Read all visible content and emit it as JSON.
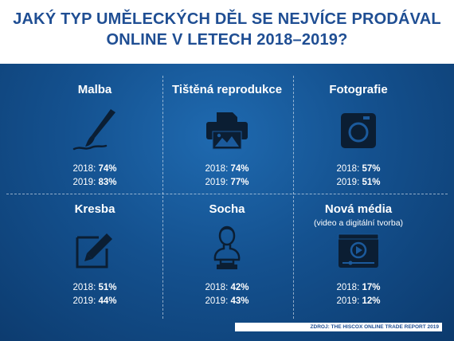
{
  "title": {
    "line1": "JAKÝ TYP UMĚLECKÝCH DĚL SE NEJVÍCE PRODÁVAL",
    "line2": "ONLINE V LETECH 2018–2019?"
  },
  "categories": [
    {
      "name": "Malba",
      "icon": "paintbrush-icon",
      "y2018_label": "2018:",
      "y2018_value": "74%",
      "y2019_label": "2019:",
      "y2019_value": "83%"
    },
    {
      "name": "Tištěná reprodukce",
      "icon": "printer-icon",
      "y2018_label": "2018:",
      "y2018_value": "74%",
      "y2019_label": "2019:",
      "y2019_value": "77%"
    },
    {
      "name": "Fotografie",
      "icon": "camera-icon",
      "y2018_label": "2018:",
      "y2018_value": "57%",
      "y2019_label": "2019:",
      "y2019_value": "51%"
    },
    {
      "name": "Kresba",
      "icon": "pencil-drawing-icon",
      "y2018_label": "2018:",
      "y2018_value": "51%",
      "y2019_label": "2019:",
      "y2019_value": "44%"
    },
    {
      "name": "Socha",
      "icon": "bust-sculpture-icon",
      "y2018_label": "2018:",
      "y2018_value": "42%",
      "y2019_label": "2019:",
      "y2019_value": "43%"
    },
    {
      "name": "Nová média",
      "subtitle": "(video a digitální tvorba)",
      "icon": "video-player-icon",
      "y2018_label": "2018:",
      "y2018_value": "17%",
      "y2019_label": "2019:",
      "y2019_value": "12%"
    }
  ],
  "source": "ZDROJ: THE HISCOX ONLINE TRADE REPORT 2019",
  "colors": {
    "title_text": "#1f4e93",
    "background": "#14518f",
    "icon": "#0b1e33"
  }
}
